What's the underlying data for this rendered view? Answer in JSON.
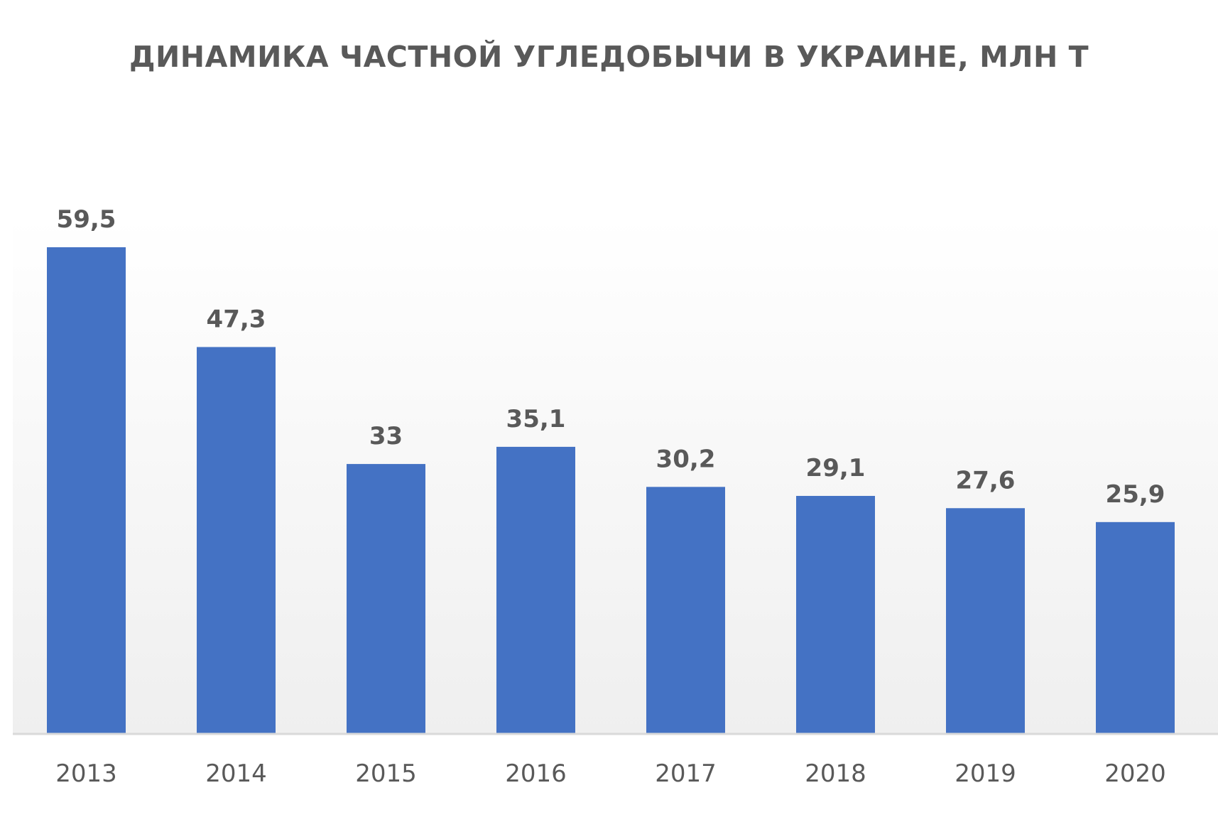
{
  "chart_data": {
    "type": "bar",
    "title": "ДИНАМИКА ЧАСТНОЙ УГЛЕДОБЫЧИ В УКРАИНЕ, МЛН Т",
    "categories": [
      "2013",
      "2014",
      "2015",
      "2016",
      "2017",
      "2018",
      "2019",
      "2020"
    ],
    "values": [
      59.5,
      47.3,
      33,
      35.1,
      30.2,
      29.1,
      27.6,
      25.9
    ],
    "data_labels": [
      "59,5",
      "47,3",
      "33",
      "35,1",
      "30,2",
      "29,1",
      "27,6",
      "25,9"
    ],
    "xlabel": "",
    "ylabel": "",
    "ylim": [
      0,
      65
    ],
    "grid": false,
    "legend": "none",
    "bar_color": "#4472C4",
    "text_color": "#595959",
    "axis_color": "#D9D9D9"
  }
}
